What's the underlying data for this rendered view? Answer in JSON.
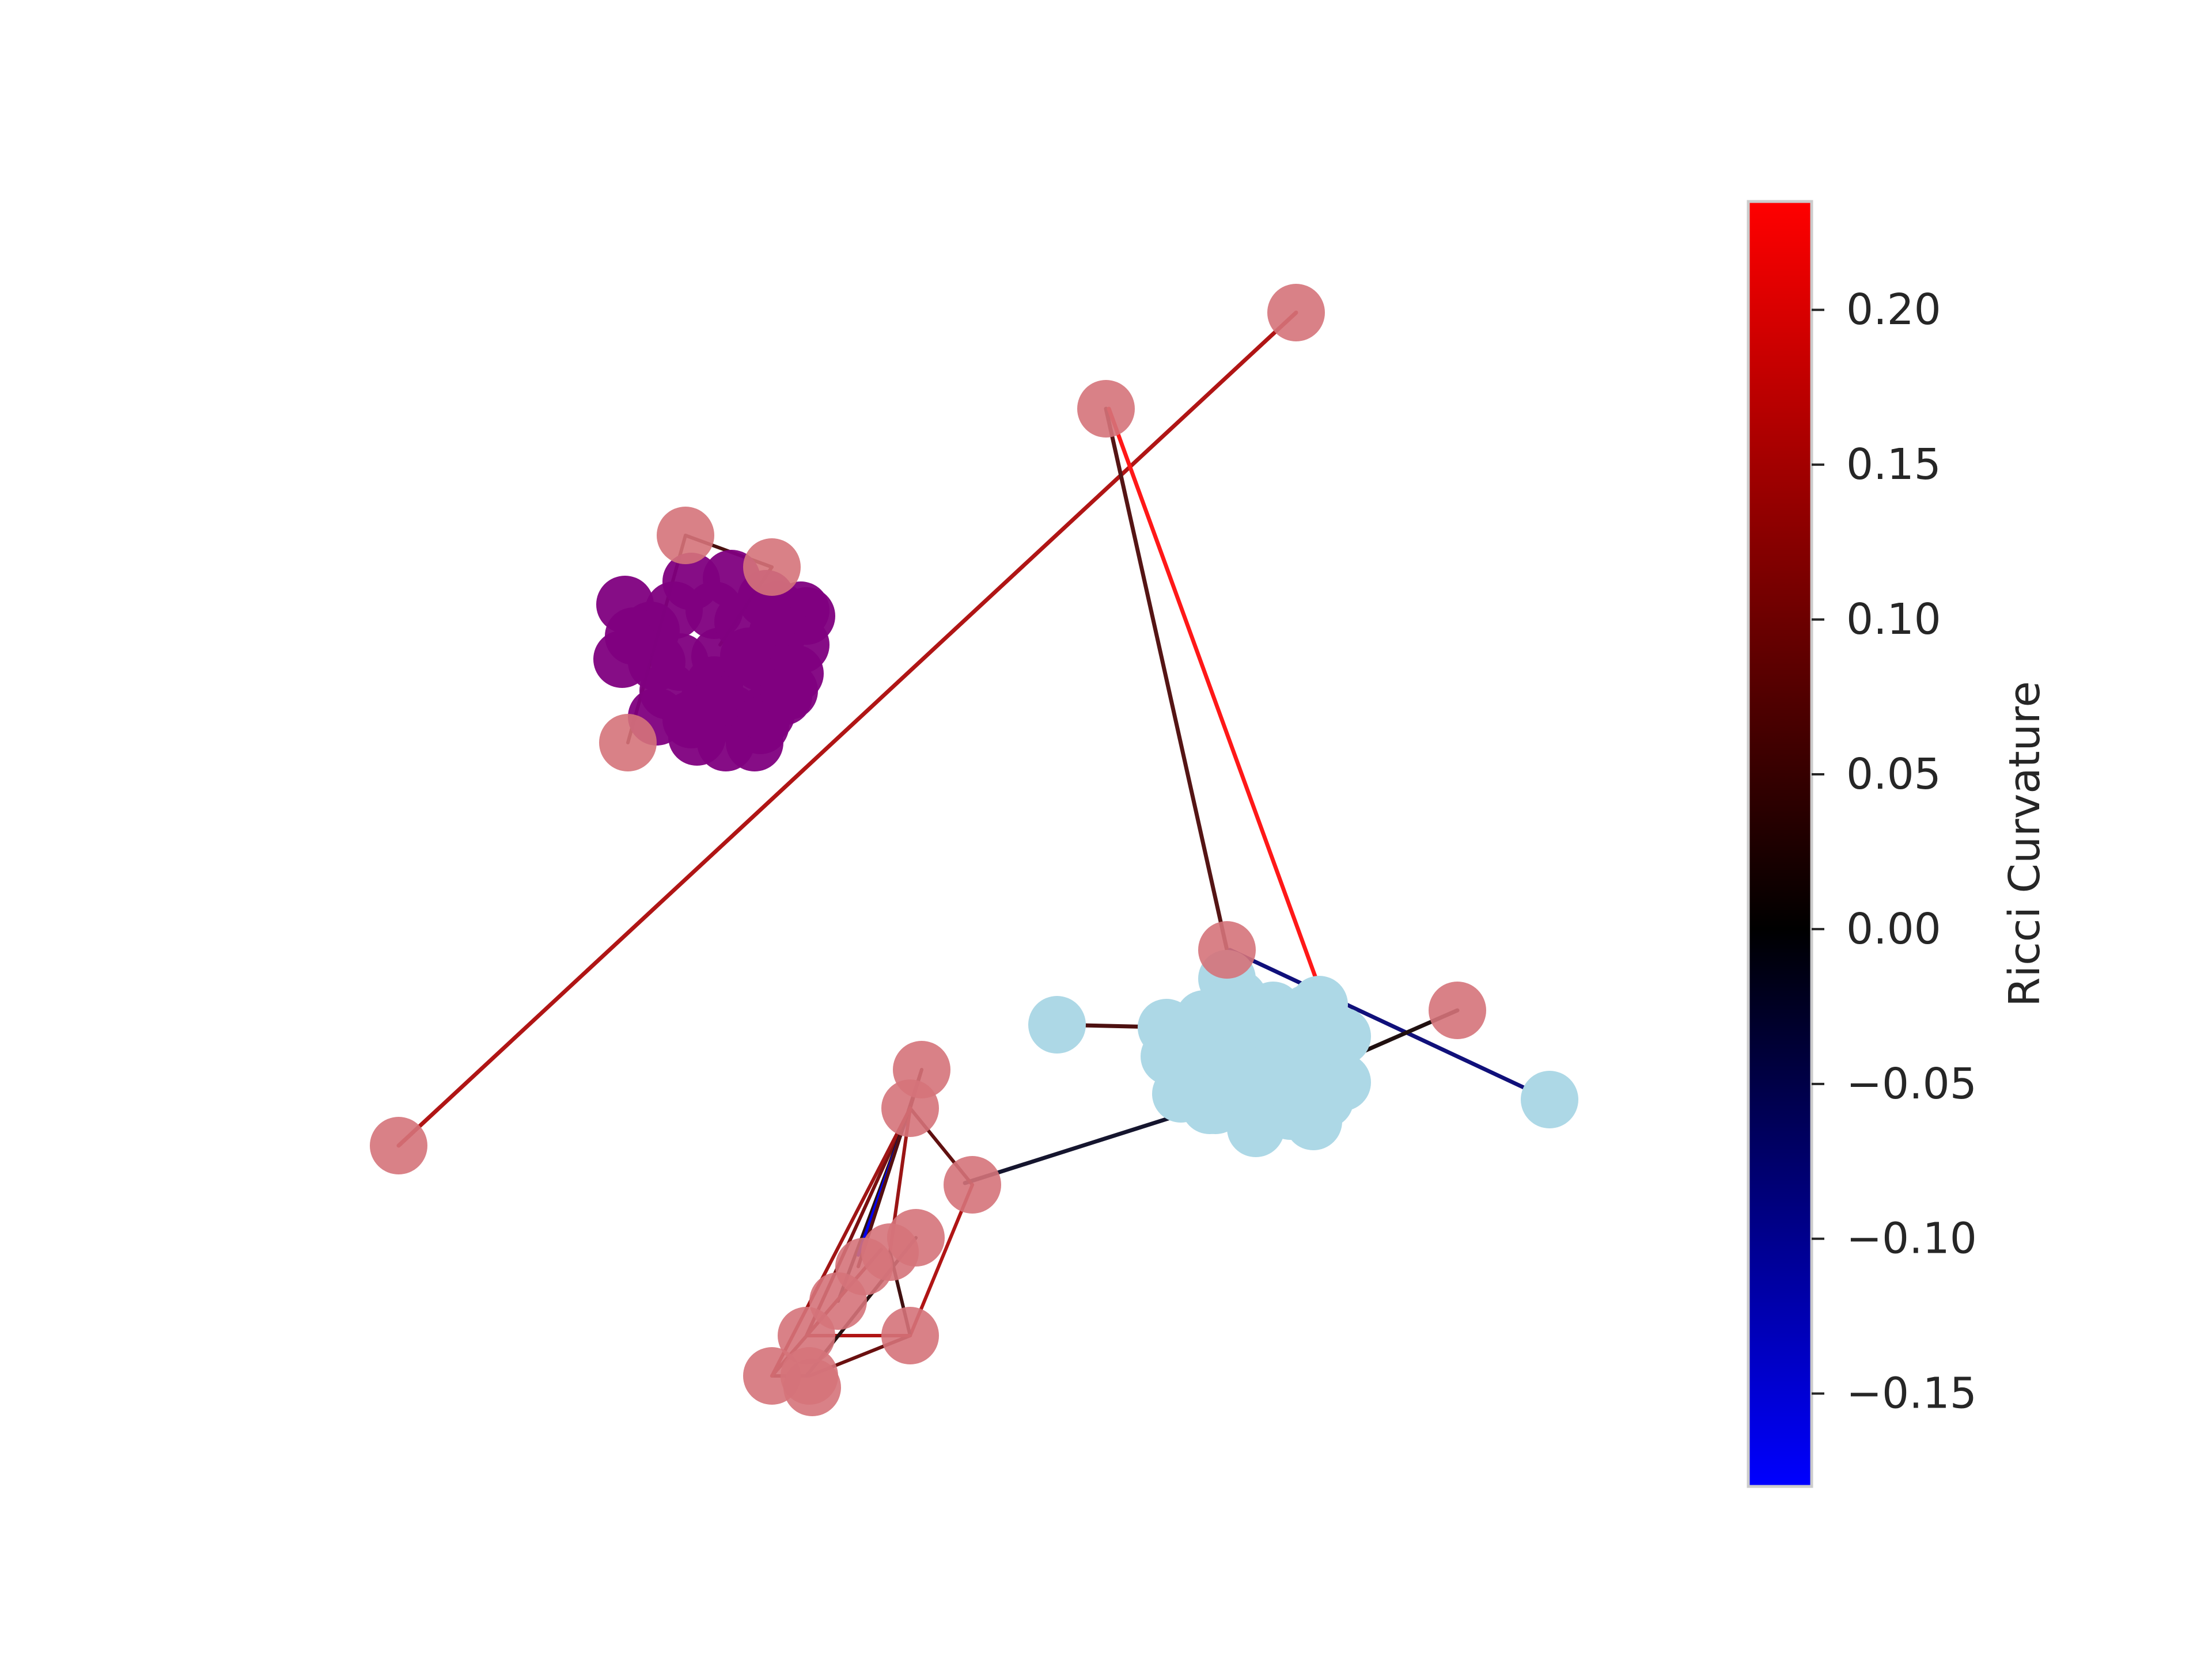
{
  "colorbar": {
    "label": "Ricci Curvature",
    "min": -0.18,
    "max": 0.235,
    "colormap": [
      "#0000ff",
      "#000000",
      "#ff0000"
    ],
    "ticks": [
      {
        "value": 0.2,
        "label": "0.20"
      },
      {
        "value": 0.15,
        "label": "0.15"
      },
      {
        "value": 0.1,
        "label": "0.10"
      },
      {
        "value": 0.05,
        "label": "0.05"
      },
      {
        "value": 0.0,
        "label": "0.00"
      },
      {
        "value": -0.05,
        "label": "−0.05"
      },
      {
        "value": -0.1,
        "label": "−0.10"
      },
      {
        "value": -0.15,
        "label": "−0.15"
      }
    ]
  },
  "node_colors": {
    "purple": "#800080",
    "lightblue": "#add8e6",
    "pink": "#d5737a"
  }
}
